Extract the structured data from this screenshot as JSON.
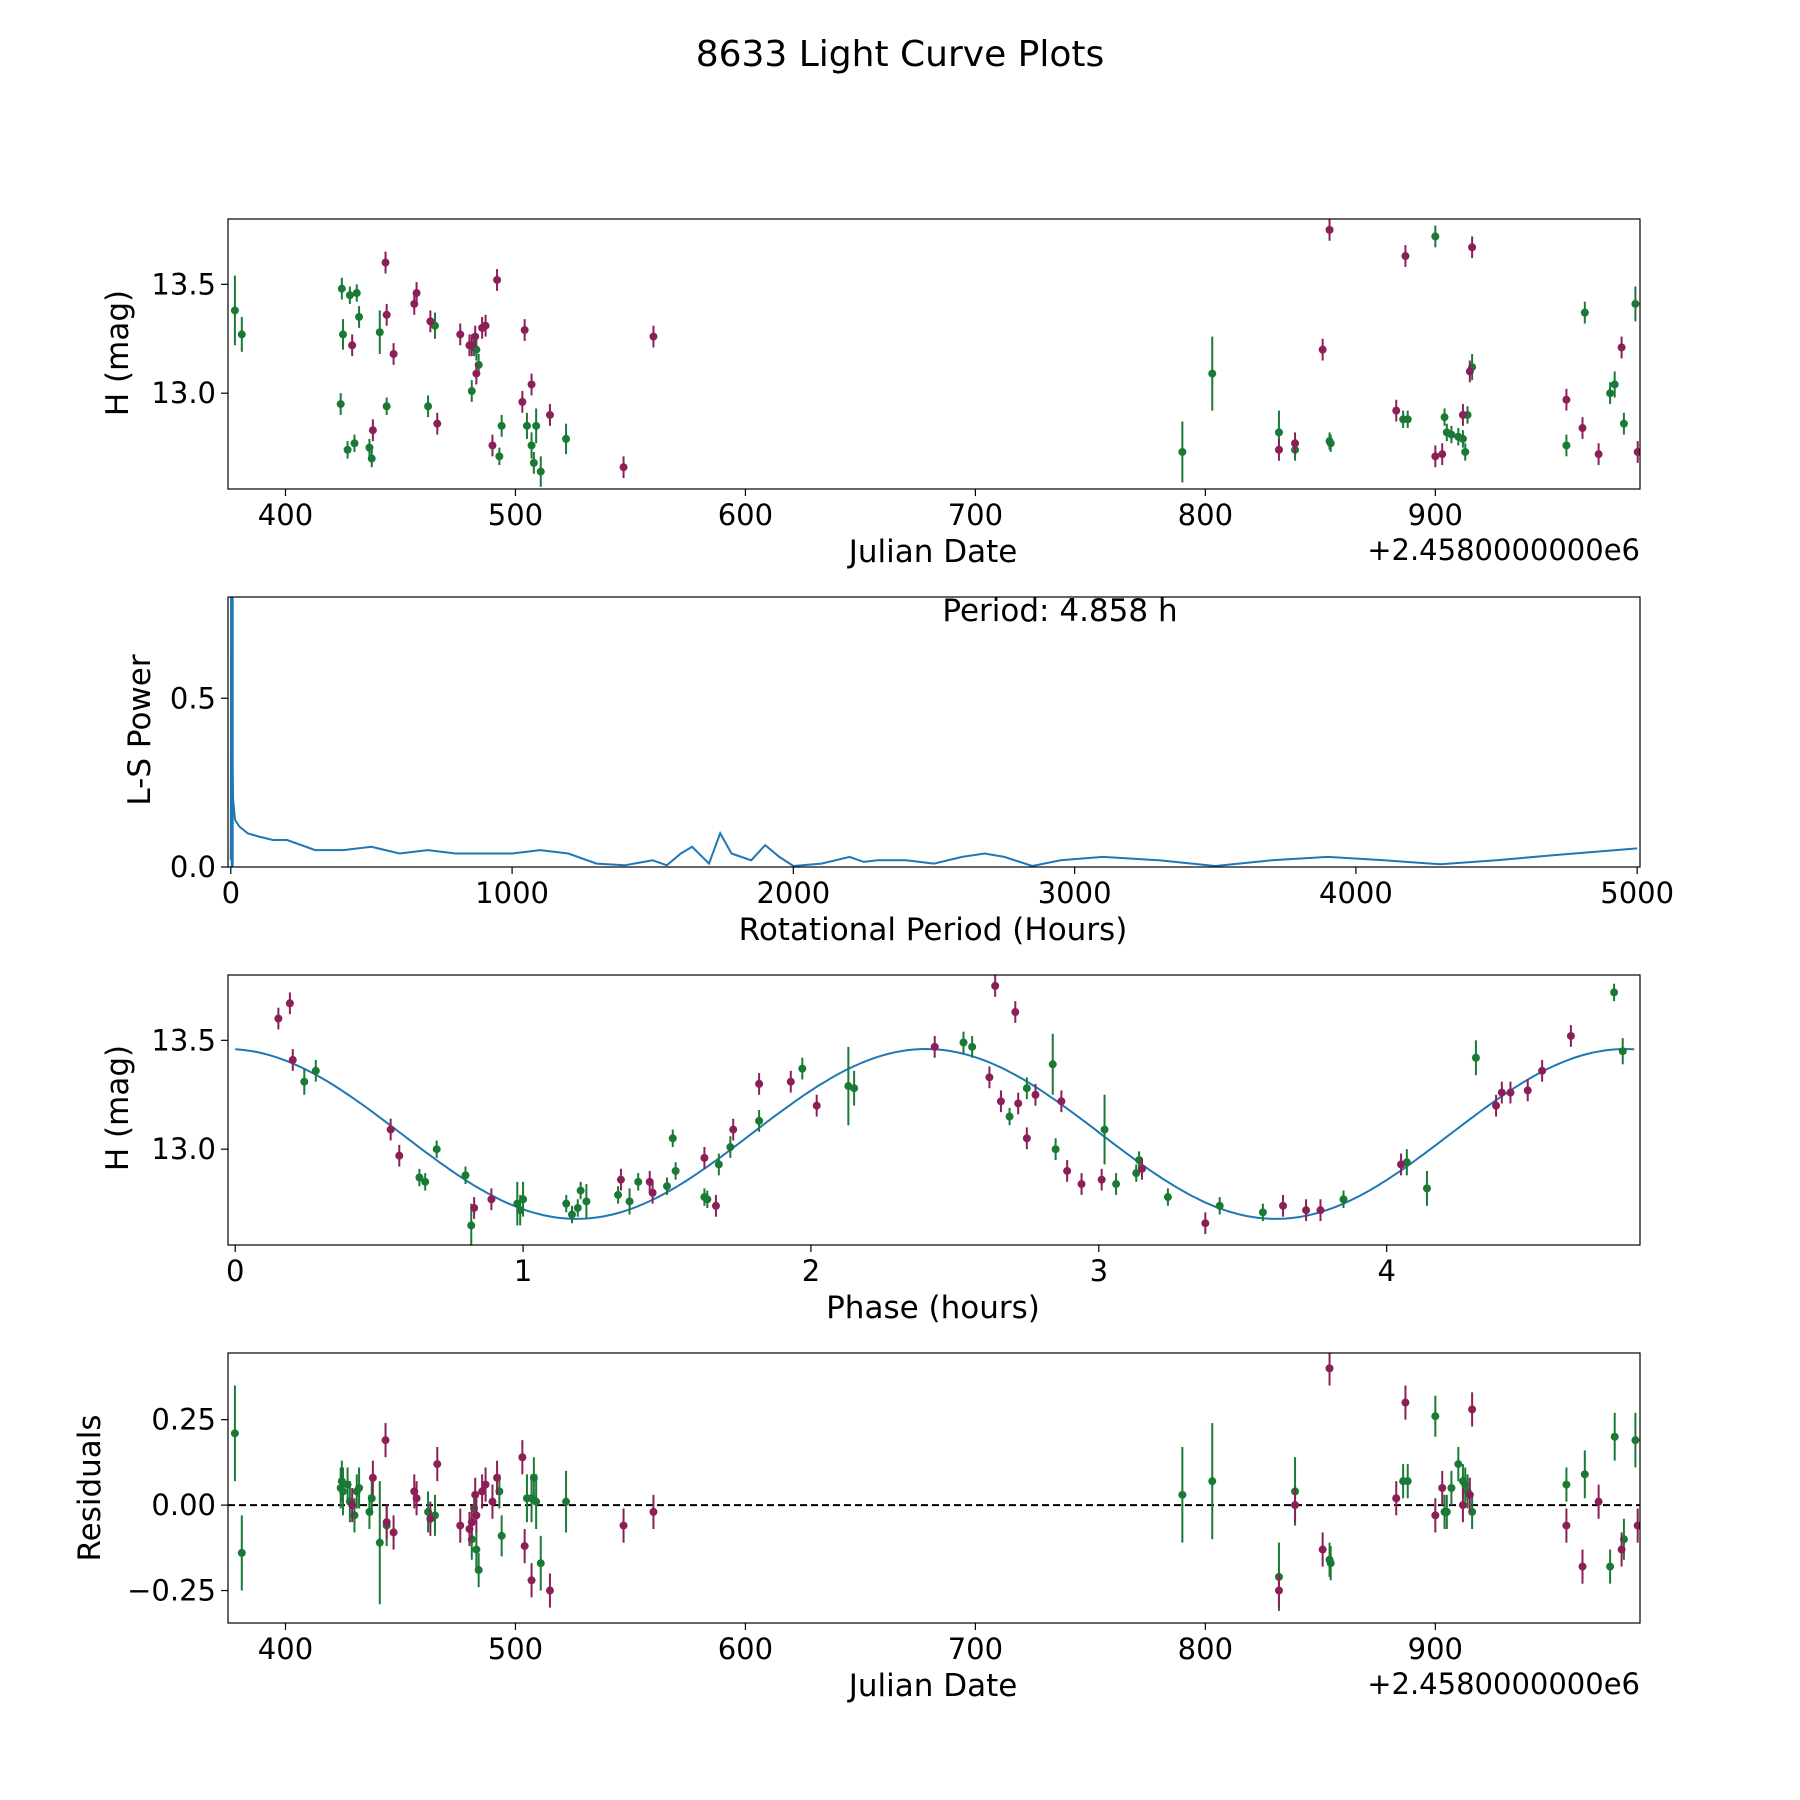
{
  "figure": {
    "title": "8633 Light Curve Plots",
    "colors": {
      "series_a": "#1a7a35",
      "series_b": "#8c1f57",
      "model": "#1f77b4"
    }
  },
  "chart_data": [
    {
      "type": "scatter",
      "panel": "lightcurve",
      "xlabel": "Julian Date",
      "ylabel": "H (mag)",
      "offset_text": "+2.4580000000e6",
      "xlim": [
        375,
        989
      ],
      "ylim": [
        12.56,
        13.8
      ],
      "xticks": [
        400,
        500,
        600,
        700,
        800,
        900
      ],
      "xtick_labels": [
        "400",
        "500",
        "600",
        "700",
        "800",
        "900"
      ],
      "yticks": [
        13.0,
        13.5
      ],
      "ytick_labels": [
        "13.0",
        "13.5"
      ],
      "series": [
        {
          "color": "#1a7a35",
          "x": [
            378,
            381,
            424,
            424.5,
            425,
            427,
            428,
            430,
            431,
            432,
            436.5,
            437.5,
            441,
            444,
            462,
            465,
            481,
            482,
            483,
            484,
            493,
            494,
            505,
            507,
            508,
            509,
            511,
            522,
            790,
            803,
            832,
            839,
            854,
            854.5,
            886,
            888,
            900,
            904,
            905,
            907,
            910,
            912,
            913,
            914,
            916,
            957,
            965,
            976,
            978,
            982,
            987
          ],
          "y": [
            13.38,
            13.27,
            12.95,
            13.48,
            13.27,
            12.74,
            13.45,
            12.77,
            13.46,
            13.35,
            12.75,
            12.7,
            13.28,
            12.94,
            12.94,
            13.31,
            13.01,
            13.21,
            13.2,
            13.13,
            12.71,
            12.85,
            12.85,
            12.76,
            12.68,
            12.85,
            12.64,
            12.79,
            12.73,
            13.09,
            12.82,
            12.74,
            12.78,
            12.77,
            12.88,
            12.88,
            13.72,
            12.89,
            12.82,
            12.81,
            12.8,
            12.79,
            12.73,
            12.9,
            13.12,
            12.76,
            13.37,
            13.0,
            13.04,
            12.86,
            13.41
          ],
          "err": [
            0.16,
            0.08,
            0.05,
            0.05,
            0.07,
            0.04,
            0.04,
            0.04,
            0.04,
            0.05,
            0.04,
            0.04,
            0.1,
            0.04,
            0.05,
            0.06,
            0.05,
            0.04,
            0.05,
            0.05,
            0.04,
            0.05,
            0.06,
            0.06,
            0.05,
            0.08,
            0.07,
            0.07,
            0.14,
            0.17,
            0.1,
            0.05,
            0.04,
            0.04,
            0.04,
            0.04,
            0.05,
            0.04,
            0.04,
            0.04,
            0.04,
            0.04,
            0.04,
            0.04,
            0.06,
            0.05,
            0.05,
            0.05,
            0.06,
            0.05,
            0.08
          ]
        },
        {
          "color": "#8c1f57",
          "x": [
            429,
            438,
            443.5,
            444,
            447,
            456,
            457,
            463,
            466,
            476,
            480,
            481,
            482.5,
            483,
            485.5,
            487,
            490,
            492,
            503,
            504,
            507,
            515,
            547,
            560,
            832,
            839,
            851,
            854,
            883,
            887,
            900,
            903,
            912,
            915,
            916,
            957,
            964,
            971,
            981,
            988
          ],
          "y": [
            13.22,
            12.83,
            13.6,
            13.36,
            13.18,
            13.41,
            13.46,
            13.33,
            12.86,
            13.27,
            13.22,
            13.22,
            13.26,
            13.09,
            13.3,
            13.31,
            12.76,
            13.52,
            12.96,
            13.29,
            13.04,
            12.9,
            12.66,
            13.26,
            12.74,
            12.77,
            13.2,
            13.75,
            12.92,
            13.63,
            12.71,
            12.72,
            12.9,
            13.1,
            13.67,
            12.97,
            12.84,
            12.72,
            13.21,
            12.73
          ]
        }
      ]
    },
    {
      "type": "line",
      "panel": "periodogram",
      "xlabel": "Rotational Period (Hours)",
      "ylabel": "L-S Power",
      "annotation": "Period: 4.858 h",
      "xlim": [
        -10,
        5010
      ],
      "ylim": [
        0,
        0.8
      ],
      "xticks": [
        0,
        1000,
        2000,
        3000,
        4000,
        5000
      ],
      "xtick_labels": [
        "0",
        "1000",
        "2000",
        "3000",
        "4000",
        "5000"
      ],
      "yticks": [
        0.0,
        0.5
      ],
      "ytick_labels": [
        "0.0",
        "0.5"
      ],
      "peak": {
        "x": 4.858,
        "y": 0.8
      },
      "series": [
        {
          "color": "#1f77b4",
          "x": [
            0,
            1,
            2,
            3,
            5,
            8,
            15,
            30,
            60,
            100,
            150,
            200,
            300,
            400,
            500,
            600,
            700,
            800,
            900,
            1000,
            1100,
            1200,
            1300,
            1400,
            1500,
            1550,
            1600,
            1640,
            1700,
            1740,
            1780,
            1850,
            1900,
            1950,
            2000,
            2100,
            2200,
            2250,
            2300,
            2400,
            2500,
            2600,
            2680,
            2750,
            2850,
            2950,
            3100,
            3300,
            3500,
            3700,
            3900,
            4100,
            4300,
            4500,
            4700,
            5000
          ],
          "y": [
            0.02,
            0.8,
            0.45,
            0.8,
            0.35,
            0.2,
            0.14,
            0.12,
            0.1,
            0.09,
            0.08,
            0.08,
            0.05,
            0.05,
            0.06,
            0.04,
            0.05,
            0.04,
            0.04,
            0.04,
            0.05,
            0.04,
            0.01,
            0.005,
            0.02,
            0.005,
            0.04,
            0.06,
            0.01,
            0.1,
            0.04,
            0.02,
            0.065,
            0.03,
            0.003,
            0.01,
            0.03,
            0.015,
            0.02,
            0.02,
            0.01,
            0.03,
            0.04,
            0.03,
            0.003,
            0.02,
            0.03,
            0.02,
            0.003,
            0.02,
            0.03,
            0.02,
            0.008,
            0.02,
            0.035,
            0.055
          ]
        }
      ]
    },
    {
      "type": "scatter",
      "panel": "phased",
      "xlabel": "Phase (hours)",
      "ylabel": "H (mag)",
      "xlim": [
        -0.025,
        4.88
      ],
      "ylim": [
        12.56,
        13.8
      ],
      "xticks": [
        0,
        1,
        2,
        3,
        4
      ],
      "xtick_labels": [
        "0",
        "1",
        "2",
        "3",
        "4"
      ],
      "yticks": [
        13.0,
        13.5
      ],
      "ytick_labels": [
        "13.0",
        "13.5"
      ],
      "model": {
        "color": "#1f77b4",
        "mean": 13.07,
        "amplitude": 0.39,
        "phase_of_max": 2.4,
        "period": 2.429
      },
      "series": [
        {
          "color": "#1a7a35",
          "x": [
            0.24,
            0.28,
            0.64,
            0.66,
            0.7,
            0.8,
            0.82,
            0.98,
            0.99,
            1.0,
            1.15,
            1.17,
            1.19,
            1.2,
            1.22,
            1.33,
            1.37,
            1.4,
            1.5,
            1.52,
            1.53,
            1.63,
            1.64,
            1.68,
            1.72,
            1.82,
            1.97,
            2.13,
            2.15,
            2.53,
            2.56,
            2.69,
            2.75,
            2.84,
            2.85,
            3.02,
            3.06,
            3.13,
            3.14,
            3.24,
            3.42,
            3.57,
            3.85,
            4.07,
            4.14,
            4.31,
            4.79,
            4.82
          ],
          "y": [
            13.31,
            13.36,
            12.87,
            12.85,
            13.0,
            12.88,
            12.65,
            12.75,
            12.72,
            12.77,
            12.75,
            12.7,
            12.73,
            12.81,
            12.76,
            12.79,
            12.76,
            12.85,
            12.83,
            13.05,
            12.9,
            12.78,
            12.77,
            12.93,
            13.01,
            13.13,
            13.37,
            13.29,
            13.28,
            13.49,
            13.47,
            13.15,
            13.28,
            13.39,
            13.0,
            13.09,
            12.84,
            12.89,
            12.95,
            12.78,
            12.74,
            12.71,
            12.77,
            12.94,
            12.82,
            13.42,
            13.72,
            13.45
          ],
          "err": [
            0.06,
            0.05,
            0.04,
            0.04,
            0.04,
            0.04,
            0.1,
            0.1,
            0.07,
            0.08,
            0.04,
            0.04,
            0.04,
            0.04,
            0.08,
            0.04,
            0.06,
            0.04,
            0.04,
            0.04,
            0.04,
            0.04,
            0.04,
            0.05,
            0.05,
            0.05,
            0.05,
            0.18,
            0.08,
            0.05,
            0.05,
            0.04,
            0.05,
            0.14,
            0.05,
            0.16,
            0.05,
            0.04,
            0.04,
            0.04,
            0.04,
            0.04,
            0.04,
            0.06,
            0.08,
            0.08,
            0.04,
            0.06
          ]
        },
        {
          "color": "#8c1f57",
          "x": [
            0.15,
            0.19,
            0.2,
            0.54,
            0.57,
            0.83,
            0.89,
            1.34,
            1.44,
            1.45,
            1.63,
            1.67,
            1.73,
            1.82,
            1.93,
            2.02,
            2.43,
            2.62,
            2.64,
            2.66,
            2.71,
            2.72,
            2.75,
            2.78,
            2.89,
            2.87,
            2.94,
            3.01,
            3.15,
            3.37,
            3.64,
            3.72,
            3.77,
            4.05,
            4.38,
            4.4,
            4.43,
            4.49,
            4.54,
            4.64
          ],
          "y": [
            13.6,
            13.67,
            13.41,
            13.09,
            12.97,
            12.73,
            12.77,
            12.86,
            12.85,
            12.8,
            12.96,
            12.74,
            13.09,
            13.3,
            13.31,
            13.2,
            13.47,
            13.33,
            13.75,
            13.22,
            13.63,
            13.21,
            13.05,
            13.25,
            12.9,
            13.22,
            12.84,
            12.86,
            12.91,
            12.66,
            12.74,
            12.72,
            12.72,
            12.93,
            13.2,
            13.26,
            13.26,
            13.27,
            13.36,
            13.52
          ]
        }
      ]
    },
    {
      "type": "scatter",
      "panel": "residuals",
      "xlabel": "Julian Date",
      "ylabel": "Residuals",
      "offset_text": "+2.4580000000e6",
      "xlim": [
        375,
        989
      ],
      "ylim": [
        -0.345,
        0.445
      ],
      "xticks": [
        400,
        500,
        600,
        700,
        800,
        900
      ],
      "xtick_labels": [
        "400",
        "500",
        "600",
        "700",
        "800",
        "900"
      ],
      "yticks": [
        -0.25,
        0.0,
        0.25
      ],
      "ytick_labels": [
        "−0.25",
        "0.00",
        "0.25"
      ],
      "reference_line": 0,
      "series": [
        {
          "color": "#1a7a35",
          "x": [
            378,
            381,
            424,
            424.5,
            425,
            427,
            428,
            430,
            431,
            432,
            436.5,
            437.5,
            441,
            444,
            462,
            465,
            481,
            482,
            483,
            484,
            493,
            494,
            505,
            507,
            508,
            509,
            511,
            522,
            790,
            803,
            832,
            839,
            854,
            854.5,
            886,
            888,
            900,
            904,
            905,
            907,
            910,
            912,
            913,
            914,
            916,
            957,
            965,
            976,
            978,
            982,
            987
          ],
          "y": [
            0.21,
            -0.14,
            0.05,
            0.07,
            0.04,
            0.06,
            0.01,
            -0.03,
            0.04,
            0.05,
            -0.02,
            0.02,
            -0.11,
            -0.06,
            -0.02,
            -0.03,
            -0.1,
            -0.01,
            -0.13,
            -0.19,
            0.04,
            -0.09,
            0.02,
            0.02,
            0.08,
            0.01,
            -0.17,
            0.01,
            0.03,
            0.07,
            -0.21,
            0.04,
            -0.16,
            -0.17,
            0.07,
            0.07,
            0.26,
            -0.02,
            -0.02,
            0.05,
            0.12,
            0.07,
            0.06,
            0.04,
            -0.02,
            0.06,
            0.09,
            -0.18,
            0.2,
            -0.1,
            0.19
          ],
          "err": [
            0.14,
            0.11,
            0.06,
            0.06,
            0.07,
            0.05,
            0.06,
            0.05,
            0.05,
            0.06,
            0.05,
            0.05,
            0.18,
            0.06,
            0.06,
            0.06,
            0.06,
            0.05,
            0.06,
            0.05,
            0.05,
            0.06,
            0.07,
            0.07,
            0.06,
            0.08,
            0.08,
            0.09,
            0.14,
            0.17,
            0.1,
            0.1,
            0.05,
            0.05,
            0.05,
            0.05,
            0.06,
            0.05,
            0.05,
            0.05,
            0.05,
            0.05,
            0.05,
            0.05,
            0.05,
            0.05,
            0.07,
            0.05,
            0.07,
            0.06,
            0.08
          ]
        },
        {
          "color": "#8c1f57",
          "x": [
            429,
            438,
            443.5,
            444,
            447,
            456,
            457,
            463,
            466,
            476,
            480,
            481,
            482.5,
            483,
            485.5,
            487,
            490,
            492,
            503,
            504,
            507,
            515,
            547,
            560,
            832,
            839,
            851,
            854,
            883,
            887,
            900,
            903,
            912,
            915,
            916,
            957,
            964,
            971,
            981,
            988
          ],
          "y": [
            0.0,
            0.08,
            0.19,
            -0.05,
            -0.08,
            0.04,
            0.02,
            -0.04,
            0.12,
            -0.06,
            -0.07,
            -0.05,
            0.03,
            -0.03,
            0.04,
            0.06,
            0.01,
            0.08,
            0.14,
            -0.12,
            -0.22,
            -0.25,
            -0.06,
            -0.02,
            -0.25,
            0.0,
            -0.13,
            0.4,
            0.02,
            0.3,
            -0.03,
            0.05,
            0.0,
            0.03,
            0.28,
            -0.06,
            -0.18,
            0.01,
            -0.13,
            -0.06
          ]
        }
      ]
    }
  ]
}
